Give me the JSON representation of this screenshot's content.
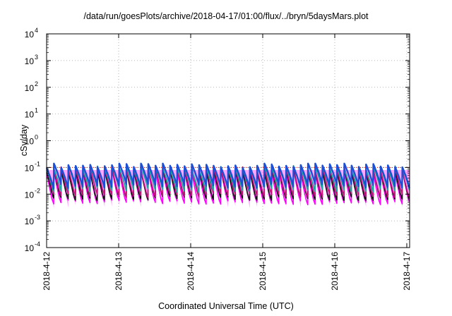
{
  "title": "/data/run/goesPlots/archive/2018-04-17/01:00/flux/../bryn/5daysMars.plot",
  "chart_data": {
    "type": "line",
    "title": "/data/run/goesPlots/archive/2018-04-17/01:00/flux/../bryn/5daysMars.plot",
    "xlabel": "Coordinated Universal Time (UTC)",
    "ylabel": "cSv/day",
    "y_scale": "log",
    "ylim": [
      0.0001,
      10000
    ],
    "xlim": [
      "2018-04-12 00:00",
      "2018-04-17 01:00"
    ],
    "x_ticks": [
      "2018-4-12",
      "2018-4-13",
      "2018-4-14",
      "2018-4-15",
      "2018-4-16",
      "2018-4-17"
    ],
    "y_ticks": [
      {
        "value": 0.0001,
        "base": "10",
        "exp": "-4"
      },
      {
        "value": 0.001,
        "base": "10",
        "exp": "-3"
      },
      {
        "value": 0.01,
        "base": "10",
        "exp": "-2"
      },
      {
        "value": 0.1,
        "base": "10",
        "exp": "-1"
      },
      {
        "value": 1,
        "base": "10",
        "exp": "0"
      },
      {
        "value": 10,
        "base": "10",
        "exp": "1"
      },
      {
        "value": 100,
        "base": "10",
        "exp": "2"
      },
      {
        "value": 1000,
        "base": "10",
        "exp": "3"
      },
      {
        "value": 10000,
        "base": "10",
        "exp": "4"
      }
    ],
    "grid": true,
    "reference_line": {
      "value": 0.1,
      "color": "#ff0000",
      "style": "dotted"
    },
    "pattern": {
      "cycles_per_day": 10,
      "peak": 0.12,
      "series_troughs": [
        0.02,
        0.014,
        0.009,
        0.007,
        0.005
      ]
    },
    "series": [
      {
        "color": "#1c4fd6",
        "values": [
          0.12,
          0.105,
          0.09,
          0.075,
          0.065,
          0.055,
          0.045,
          0.038,
          0.031,
          0.026,
          0.02
        ]
      },
      {
        "color": "#1aa7a0",
        "values": [
          0.1,
          0.085,
          0.07,
          0.058,
          0.048,
          0.04,
          0.033,
          0.027,
          0.022,
          0.017,
          0.014
        ]
      },
      {
        "color": "#c9107a",
        "values": [
          0.09,
          0.07,
          0.055,
          0.043,
          0.034,
          0.027,
          0.021,
          0.016,
          0.013,
          0.011,
          0.009
        ]
      },
      {
        "color": "#111111",
        "values": [
          0.08,
          0.062,
          0.046,
          0.035,
          0.027,
          0.021,
          0.016,
          0.012,
          0.01,
          0.008,
          0.007
        ]
      },
      {
        "color": "#ff00ff",
        "values": [
          0.075,
          0.055,
          0.04,
          0.029,
          0.021,
          0.016,
          0.012,
          0.009,
          0.007,
          0.006,
          0.005
        ]
      }
    ]
  },
  "colors": {
    "axis": "#000000",
    "grid": "#a0a0a0",
    "reference": "#ff0000",
    "fill_band": "#ff00ff"
  }
}
